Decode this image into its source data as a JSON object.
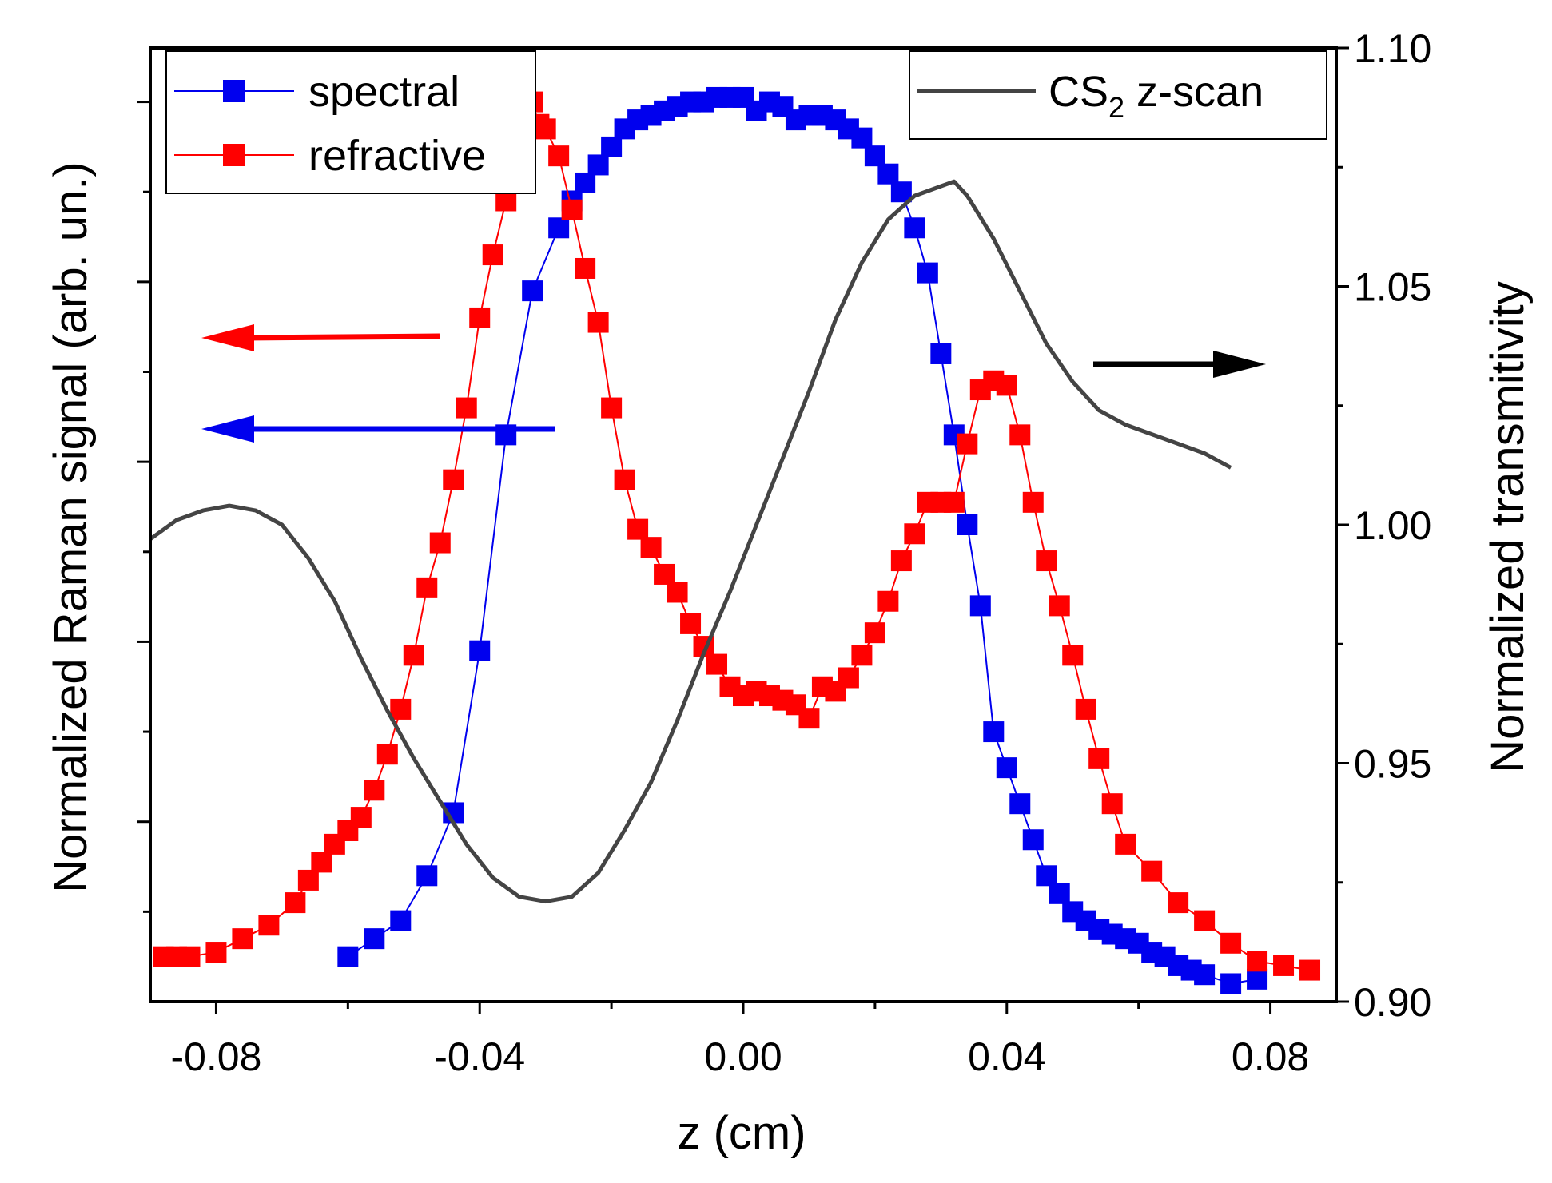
{
  "chart_data": {
    "type": "line",
    "xlabel": "z (cm)",
    "ylabel_left": "Normalized Raman signal (arb. un.)",
    "ylabel_right": "Normalized transmitivity",
    "xlim": [
      -0.09,
      0.09
    ],
    "ylim_left": [
      0,
      1.06
    ],
    "ylim_right": [
      0.9,
      1.1
    ],
    "x_ticks": [
      -0.08,
      -0.04,
      0.0,
      0.04,
      0.08
    ],
    "x_tick_labels": [
      "-0.08",
      "-0.04",
      "0.00",
      "0.04",
      "0.08"
    ],
    "y_right_ticks": [
      0.9,
      0.95,
      1.0,
      1.05,
      1.1
    ],
    "y_right_tick_labels": [
      "0.90",
      "0.95",
      "1.00",
      "1.05",
      "1.10"
    ],
    "grid": false,
    "series": [
      {
        "name": "spectral",
        "axis": "left",
        "color": "#0000ee",
        "marker": "square",
        "x": [
          -0.06,
          -0.056,
          -0.052,
          -0.048,
          -0.044,
          -0.04,
          -0.036,
          -0.032,
          -0.028,
          -0.026,
          -0.024,
          -0.022,
          -0.02,
          -0.018,
          -0.016,
          -0.014,
          -0.012,
          -0.01,
          -0.008,
          -0.006,
          -0.004,
          -0.002,
          0.0,
          0.002,
          0.004,
          0.006,
          0.008,
          0.01,
          0.012,
          0.014,
          0.016,
          0.018,
          0.02,
          0.022,
          0.024,
          0.026,
          0.028,
          0.03,
          0.032,
          0.034,
          0.036,
          0.038,
          0.04,
          0.042,
          0.044,
          0.046,
          0.048,
          0.05,
          0.052,
          0.054,
          0.056,
          0.058,
          0.06,
          0.062,
          0.064,
          0.066,
          0.068,
          0.07,
          0.074,
          0.078
        ],
        "values": [
          0.05,
          0.07,
          0.09,
          0.14,
          0.21,
          0.39,
          0.63,
          0.79,
          0.86,
          0.89,
          0.91,
          0.93,
          0.95,
          0.97,
          0.98,
          0.985,
          0.99,
          0.995,
          1.0,
          1.0,
          1.005,
          1.005,
          1.005,
          0.99,
          1.0,
          0.995,
          0.98,
          0.985,
          0.985,
          0.98,
          0.97,
          0.96,
          0.94,
          0.92,
          0.9,
          0.86,
          0.81,
          0.72,
          0.63,
          0.53,
          0.44,
          0.3,
          0.26,
          0.22,
          0.18,
          0.14,
          0.12,
          0.1,
          0.09,
          0.08,
          0.075,
          0.07,
          0.065,
          0.055,
          0.05,
          0.04,
          0.035,
          0.03,
          0.02,
          0.025
        ]
      },
      {
        "name": "refractive",
        "axis": "left",
        "color": "#ff0000",
        "marker": "square",
        "x": [
          -0.088,
          -0.086,
          -0.084,
          -0.08,
          -0.076,
          -0.072,
          -0.068,
          -0.066,
          -0.064,
          -0.062,
          -0.06,
          -0.058,
          -0.056,
          -0.054,
          -0.052,
          -0.05,
          -0.048,
          -0.046,
          -0.044,
          -0.042,
          -0.04,
          -0.038,
          -0.036,
          -0.034,
          -0.033,
          -0.032,
          -0.031,
          -0.03,
          -0.028,
          -0.026,
          -0.024,
          -0.022,
          -0.02,
          -0.018,
          -0.016,
          -0.014,
          -0.012,
          -0.01,
          -0.008,
          -0.006,
          -0.004,
          -0.002,
          0.0,
          0.002,
          0.004,
          0.006,
          0.008,
          0.01,
          0.012,
          0.014,
          0.016,
          0.018,
          0.02,
          0.022,
          0.024,
          0.026,
          0.028,
          0.03,
          0.032,
          0.034,
          0.036,
          0.038,
          0.04,
          0.042,
          0.044,
          0.046,
          0.048,
          0.05,
          0.052,
          0.054,
          0.056,
          0.058,
          0.062,
          0.066,
          0.07,
          0.074,
          0.078,
          0.082,
          0.086
        ],
        "values": [
          0.05,
          0.05,
          0.05,
          0.055,
          0.07,
          0.085,
          0.11,
          0.135,
          0.155,
          0.175,
          0.19,
          0.205,
          0.235,
          0.275,
          0.325,
          0.385,
          0.46,
          0.51,
          0.58,
          0.66,
          0.76,
          0.83,
          0.89,
          0.955,
          0.99,
          1.0,
          0.975,
          0.97,
          0.94,
          0.88,
          0.815,
          0.755,
          0.66,
          0.58,
          0.525,
          0.505,
          0.475,
          0.455,
          0.42,
          0.395,
          0.375,
          0.35,
          0.34,
          0.345,
          0.34,
          0.335,
          0.33,
          0.315,
          0.35,
          0.345,
          0.36,
          0.385,
          0.41,
          0.445,
          0.49,
          0.52,
          0.555,
          0.555,
          0.555,
          0.62,
          0.68,
          0.69,
          0.685,
          0.63,
          0.555,
          0.49,
          0.44,
          0.385,
          0.325,
          0.27,
          0.22,
          0.175,
          0.145,
          0.11,
          0.09,
          0.065,
          0.045,
          0.04,
          0.035
        ]
      },
      {
        "name": "CS2 z-scan",
        "axis": "right",
        "color": "#444444",
        "marker": "none",
        "x": [
          -0.09,
          -0.086,
          -0.082,
          -0.078,
          -0.074,
          -0.07,
          -0.066,
          -0.062,
          -0.058,
          -0.054,
          -0.05,
          -0.046,
          -0.042,
          -0.038,
          -0.034,
          -0.03,
          -0.026,
          -0.022,
          -0.018,
          -0.014,
          -0.01,
          -0.006,
          -0.002,
          0.002,
          0.006,
          0.01,
          0.014,
          0.018,
          0.022,
          0.026,
          0.03,
          0.032,
          0.034,
          0.038,
          0.042,
          0.046,
          0.05,
          0.054,
          0.058,
          0.062,
          0.066,
          0.07,
          0.074
        ],
        "values": [
          0.997,
          1.001,
          1.003,
          1.004,
          1.003,
          1.0,
          0.993,
          0.984,
          0.972,
          0.961,
          0.951,
          0.942,
          0.933,
          0.926,
          0.922,
          0.921,
          0.922,
          0.927,
          0.936,
          0.946,
          0.959,
          0.973,
          0.986,
          1.0,
          1.014,
          1.028,
          1.043,
          1.055,
          1.064,
          1.069,
          1.071,
          1.072,
          1.069,
          1.06,
          1.049,
          1.038,
          1.03,
          1.024,
          1.021,
          1.019,
          1.017,
          1.015,
          1.012
        ]
      }
    ],
    "legend_left": [
      {
        "label": "spectral",
        "color": "#0000ee"
      },
      {
        "label": "refractive",
        "color": "#ff0000"
      }
    ],
    "legend_right": {
      "label_main": "CS",
      "label_sub": "2",
      "label_rest": " z-scan",
      "color": "#444444"
    },
    "annotations": [
      {
        "type": "arrow",
        "direction": "left",
        "color": "#ff0000",
        "meaning": "refractive -> left axis"
      },
      {
        "type": "arrow",
        "direction": "left",
        "color": "#0000ee",
        "meaning": "spectral -> left axis"
      },
      {
        "type": "arrow",
        "direction": "right",
        "color": "#000000",
        "meaning": "CS2 z-scan -> right axis"
      }
    ]
  }
}
